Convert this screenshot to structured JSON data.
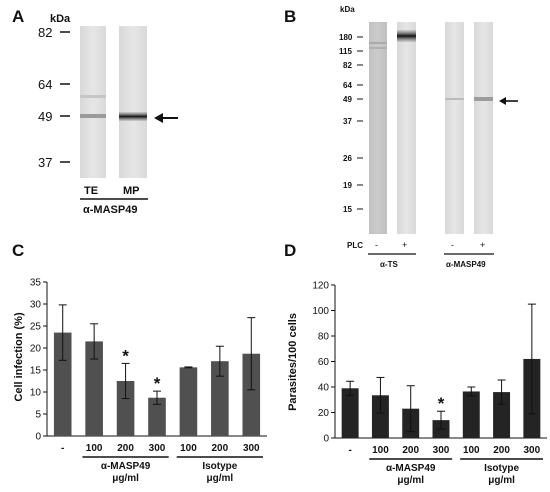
{
  "panels": {
    "A": {
      "label": "A",
      "unit": "kDa",
      "markers": [
        "82",
        "64",
        "49",
        "37"
      ],
      "lanes": [
        "TE",
        "MP"
      ],
      "antibody": "α-MASP49"
    },
    "B": {
      "label": "B",
      "unit": "kDa",
      "markers": [
        "180",
        "115",
        "82",
        "64",
        "49",
        "37",
        "26",
        "19",
        "15"
      ],
      "plc_label": "PLC",
      "plc_signs": [
        "-",
        "+",
        "-",
        "+"
      ],
      "group1": "α-TS",
      "group2": "α-MASP49"
    },
    "C": {
      "label": "C"
    },
    "D": {
      "label": "D"
    }
  },
  "chart_data": [
    {
      "panel": "C",
      "type": "bar",
      "ylabel": "Cell infection (%)",
      "ylim": [
        0,
        35
      ],
      "yticks": [
        "0",
        "5",
        "10",
        "15",
        "20",
        "25",
        "30",
        "35"
      ],
      "categories": [
        "-",
        "100",
        "200",
        "300",
        "100",
        "200",
        "300"
      ],
      "values": [
        23.5,
        21.5,
        12.5,
        8.7,
        15.6,
        17.0,
        18.7
      ],
      "errors": [
        6.3,
        4.0,
        4.0,
        1.5,
        0.1,
        3.4,
        8.2
      ],
      "significant": [
        false,
        false,
        true,
        true,
        false,
        false,
        false
      ],
      "sig_marker": "*",
      "groups": [
        {
          "name": "α-MASP49",
          "unit": "μg/ml"
        },
        {
          "name": "Isotype",
          "unit": "μg/ml"
        }
      ],
      "bar_color": "#505050"
    },
    {
      "panel": "D",
      "type": "bar",
      "ylabel": "Parasites/100 cells",
      "ylim": [
        0,
        120
      ],
      "yticks": [
        "0",
        "20",
        "40",
        "60",
        "80",
        "100",
        "120"
      ],
      "categories": [
        "-",
        "100",
        "200",
        "300",
        "100",
        "200",
        "300"
      ],
      "values": [
        39,
        33.5,
        23,
        14,
        36.5,
        36,
        62
      ],
      "errors": [
        5.5,
        14,
        18,
        7,
        3.5,
        9.5,
        43
      ],
      "significant": [
        false,
        false,
        false,
        true,
        false,
        false,
        false
      ],
      "sig_marker": "*",
      "groups": [
        {
          "name": "α-MASP49",
          "unit": "μg/ml"
        },
        {
          "name": "Isotype",
          "unit": "μg/ml"
        }
      ],
      "bar_color": "#242424"
    }
  ]
}
